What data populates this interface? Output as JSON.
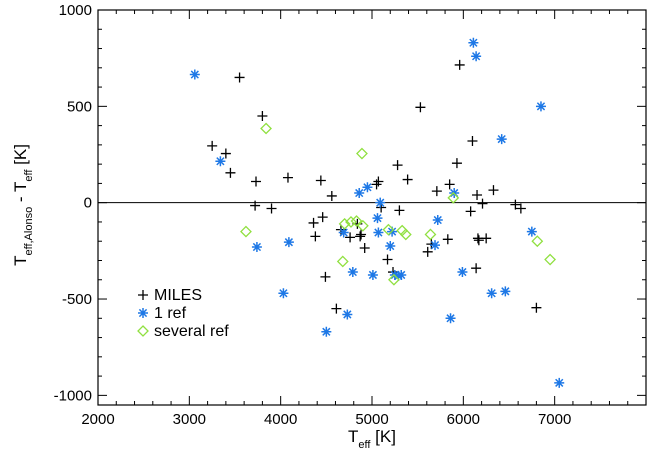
{
  "chart_data": {
    "type": "scatter",
    "xlabel": {
      "main": "T",
      "sub": "eff",
      "rest": " [K]"
    },
    "ylabel": {
      "parts": [
        {
          "text": "T",
          "sub": false
        },
        {
          "text": "eff,Alonso",
          "sub": true
        },
        {
          "text": " - T",
          "sub": false
        },
        {
          "text": "eff",
          "sub": true
        },
        {
          "text": " [K]",
          "sub": false
        }
      ]
    },
    "xlim": [
      2000,
      8000
    ],
    "ylim": [
      -1050,
      1000
    ],
    "xticks": [
      2000,
      3000,
      4000,
      5000,
      6000,
      7000
    ],
    "xtick_labels": [
      "2000",
      "3000",
      "4000",
      "5000",
      "6000",
      "7000"
    ],
    "yticks": [
      -1000,
      -500,
      0,
      500,
      1000
    ],
    "ytick_labels": [
      "-1000",
      "-500",
      "0",
      "500",
      "1000"
    ],
    "zero_line": 0,
    "grid": false,
    "legend_position": "bottom-left",
    "series": [
      {
        "name": "MILES",
        "marker": "plus",
        "color": "#000000",
        "points": [
          [
            3250,
            295
          ],
          [
            3400,
            255
          ],
          [
            3450,
            155
          ],
          [
            3550,
            650
          ],
          [
            3720,
            -15
          ],
          [
            3730,
            110
          ],
          [
            3800,
            450
          ],
          [
            3900,
            -30
          ],
          [
            4080,
            130
          ],
          [
            4360,
            -105
          ],
          [
            4380,
            -175
          ],
          [
            4440,
            115
          ],
          [
            4460,
            -75
          ],
          [
            4490,
            -385
          ],
          [
            4560,
            35
          ],
          [
            4610,
            -550
          ],
          [
            4660,
            -140
          ],
          [
            4760,
            -180
          ],
          [
            4840,
            -110
          ],
          [
            4870,
            -175
          ],
          [
            4880,
            -165
          ],
          [
            4920,
            -235
          ],
          [
            5050,
            95
          ],
          [
            5070,
            110
          ],
          [
            5100,
            -25
          ],
          [
            5170,
            -295
          ],
          [
            5230,
            -360
          ],
          [
            5280,
            195
          ],
          [
            5300,
            -40
          ],
          [
            5390,
            120
          ],
          [
            5530,
            495
          ],
          [
            5610,
            -255
          ],
          [
            5650,
            -215
          ],
          [
            5710,
            60
          ],
          [
            5830,
            -190
          ],
          [
            5850,
            95
          ],
          [
            5930,
            205
          ],
          [
            5960,
            715
          ],
          [
            6080,
            -45
          ],
          [
            6100,
            320
          ],
          [
            6140,
            -340
          ],
          [
            6150,
            40
          ],
          [
            6160,
            -185
          ],
          [
            6170,
            -195
          ],
          [
            6210,
            -5
          ],
          [
            6250,
            -185
          ],
          [
            6330,
            65
          ],
          [
            6570,
            -10
          ],
          [
            6630,
            -30
          ],
          [
            6800,
            -545
          ]
        ]
      },
      {
        "name": "1 ref",
        "marker": "asterisk",
        "color": "#1E78E6",
        "points": [
          [
            3060,
            665
          ],
          [
            3340,
            215
          ],
          [
            3740,
            -230
          ],
          [
            4030,
            -470
          ],
          [
            4090,
            -205
          ],
          [
            4500,
            -670
          ],
          [
            4690,
            -155
          ],
          [
            4730,
            -580
          ],
          [
            4790,
            -360
          ],
          [
            4860,
            50
          ],
          [
            4950,
            80
          ],
          [
            5010,
            -375
          ],
          [
            5060,
            -80
          ],
          [
            5070,
            -155
          ],
          [
            5090,
            0
          ],
          [
            5200,
            -225
          ],
          [
            5220,
            -150
          ],
          [
            5250,
            -375
          ],
          [
            5290,
            -380
          ],
          [
            5320,
            -375
          ],
          [
            5690,
            -220
          ],
          [
            5720,
            -90
          ],
          [
            5860,
            -600
          ],
          [
            5900,
            50
          ],
          [
            5990,
            -360
          ],
          [
            6110,
            830
          ],
          [
            6140,
            760
          ],
          [
            6310,
            -470
          ],
          [
            6420,
            330
          ],
          [
            6460,
            -460
          ],
          [
            6750,
            -150
          ],
          [
            6850,
            500
          ],
          [
            7050,
            -935
          ]
        ]
      },
      {
        "name": "several ref",
        "marker": "diamond",
        "color": "#90E040",
        "points": [
          [
            3620,
            -150
          ],
          [
            3840,
            385
          ],
          [
            4680,
            -305
          ],
          [
            4700,
            -110
          ],
          [
            4770,
            -100
          ],
          [
            4830,
            -95
          ],
          [
            4890,
            255
          ],
          [
            4900,
            -120
          ],
          [
            5180,
            -140
          ],
          [
            5240,
            -400
          ],
          [
            5330,
            -145
          ],
          [
            5370,
            -165
          ],
          [
            5640,
            -165
          ],
          [
            5890,
            25
          ],
          [
            6810,
            -200
          ],
          [
            6950,
            -295
          ]
        ]
      }
    ]
  }
}
